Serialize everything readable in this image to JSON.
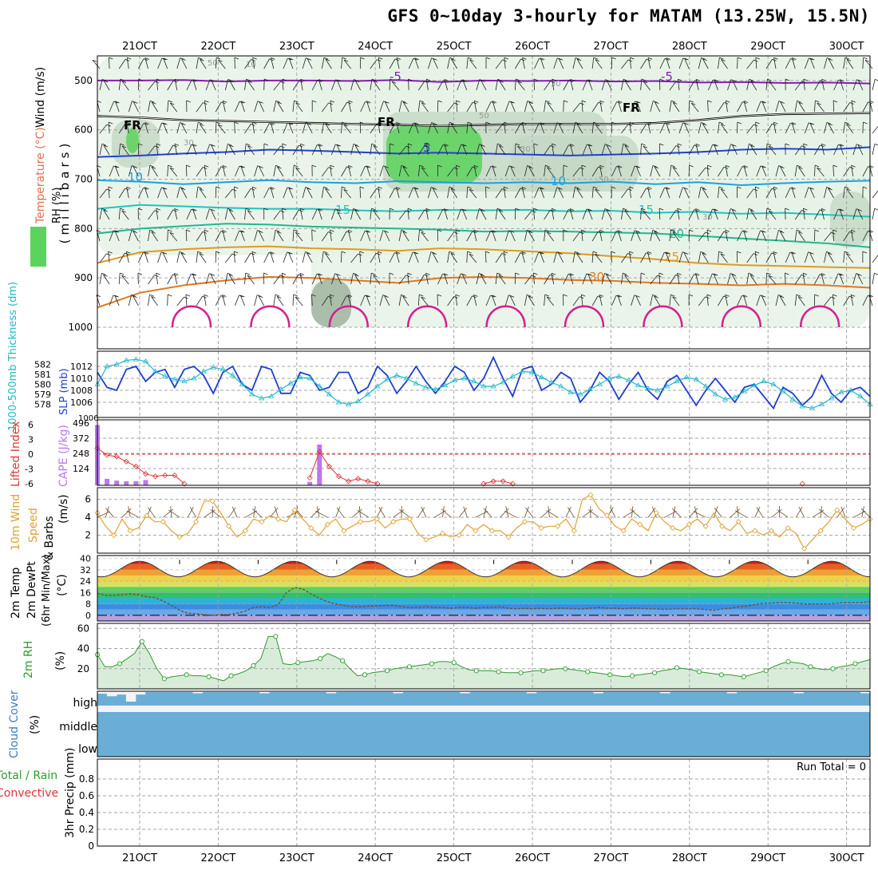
{
  "title": "GFS 0~10day 3-hourly for MATAM (13.25W, 15.5N)",
  "dates": [
    "21OCT",
    "22OCT",
    "23OCT",
    "24OCT",
    "25OCT",
    "26OCT",
    "27OCT",
    "28OCT",
    "29OCT",
    "30OCT"
  ],
  "run_total_label": "Run Total = 0",
  "chart_data": [
    {
      "type": "heatmap",
      "panel": "upper_air",
      "ylabel": "(millibars)",
      "side_labels": {
        "wind": "Wind (m/s)",
        "temperature": "Temperature (°C)",
        "rh": "RH (%)"
      },
      "y_ticks": [
        500,
        600,
        700,
        800,
        900,
        1000
      ],
      "temperature_isotherms": [
        {
          "value": -5,
          "color": "#8a1ab6",
          "p": [
            500,
            500,
            499,
            502,
            500,
            500,
            501,
            499,
            503,
            500,
            501,
            500,
            502,
            501,
            504,
            503,
            505,
            504,
            506
          ]
        },
        {
          "value": 0,
          "color": "#000000",
          "p": [
            572,
            575,
            580,
            582,
            584,
            586,
            588,
            590,
            592,
            590,
            588,
            588,
            588,
            586,
            580,
            572,
            568,
            567,
            566
          ],
          "label": "FR"
        },
        {
          "value": 5,
          "color": "#2341d0",
          "p": [
            655,
            652,
            648,
            645,
            640,
            642,
            645,
            648,
            646,
            648,
            650,
            652,
            650,
            648,
            645,
            640,
            638,
            640,
            635
          ]
        },
        {
          "value": 10,
          "color": "#1da0e0",
          "p": [
            702,
            705,
            710,
            706,
            702,
            706,
            708,
            704,
            706,
            708,
            706,
            708,
            705,
            710,
            706,
            712,
            708,
            705,
            703
          ]
        },
        {
          "value": 15,
          "color": "#1fc4c0",
          "p": [
            760,
            752,
            755,
            758,
            760,
            760,
            763,
            765,
            762,
            763,
            762,
            765,
            764,
            768,
            766,
            770,
            768,
            772,
            776
          ]
        },
        {
          "value": 20,
          "color": "#20b890",
          "p": [
            810,
            800,
            795,
            790,
            792,
            796,
            798,
            800,
            802,
            806,
            805,
            806,
            808,
            810,
            815,
            820,
            825,
            830,
            838
          ]
        },
        {
          "value": 25,
          "color": "#e09a20",
          "p": [
            870,
            848,
            842,
            838,
            836,
            840,
            842,
            845,
            840,
            842,
            846,
            850,
            856,
            862,
            870,
            874,
            876,
            878,
            880
          ]
        },
        {
          "value": 30,
          "color": "#e07820",
          "p": [
            960,
            930,
            915,
            905,
            898,
            900,
            905,
            910,
            900,
            898,
            900,
            904,
            906,
            910,
            912,
            915,
            912,
            915,
            920
          ]
        }
      ],
      "contour_labels": [
        "-5",
        "-5",
        "FR",
        "FR",
        "FR",
        "5",
        "10",
        "10",
        "15",
        "15",
        "20",
        "25",
        "30",
        "10",
        "30",
        "50",
        "30",
        "50",
        "30",
        "50",
        "30"
      ],
      "rh_shading_levels": [
        10,
        30,
        50,
        70,
        90
      ]
    },
    {
      "type": "line",
      "panel": "sea_level_pressure_and_thickness",
      "ylabel_left": "1000-500mb Thickness (dm)",
      "ylabel_right": "SLP (mb)",
      "y_ticks_thickness": [
        578,
        579,
        580,
        581,
        582
      ],
      "y_ticks_slp": [
        1006,
        1008,
        1010,
        1012
      ],
      "extra_tick_labels": [
        "1.006",
        "1006"
      ],
      "series": [
        {
          "name": "SLP (mb)",
          "color": "#1f3fd0",
          "values": [
            1011.0,
            1008.5,
            1008.0,
            1011.5,
            1012.0,
            1009.5,
            1011.0,
            1011.5,
            1008.5,
            1011.5,
            1012.0,
            1010.5,
            1007.5,
            1011.0,
            1012.0,
            1009.0,
            1008.0,
            1012.0,
            1011.5,
            1007.5,
            1007.5,
            1011.0,
            1010.5,
            1008.0,
            1008.5,
            1011.0,
            1011.0,
            1007.5,
            1008.5,
            1012.0,
            1010.5,
            1007.5,
            1009.5,
            1012.0,
            1009.5,
            1007.5,
            1009.5,
            1012.0,
            1011.0,
            1008.0,
            1010.0,
            1013.5,
            1010.0,
            1007.0,
            1011.5,
            1012.0,
            1008.0,
            1009.0,
            1011.0,
            1010.0,
            1006.0,
            1008.0,
            1011.0,
            1009.5,
            1006.5,
            1009.0,
            1011.0,
            1008.0,
            1006.5,
            1009.5,
            1010.5,
            1008.0,
            1005.5,
            1008.0,
            1010.0,
            1008.0,
            1006.0,
            1008.5,
            1009.0,
            1007.0,
            1005.0,
            1008.5,
            1007.5,
            1005.5,
            1007.0,
            1010.5,
            1007.5,
            1006.0,
            1008.0,
            1008.5,
            1007.0
          ]
        },
        {
          "name": "Thickness (dm)",
          "color": "#20b8c8",
          "values": [
            580.0,
            581.8,
            582.0,
            582.4,
            582.5,
            582.3,
            581.3,
            580.8,
            580.5,
            580.3,
            580.6,
            581.3,
            581.7,
            581.5,
            580.9,
            580.0,
            579.0,
            578.6,
            578.8,
            579.5,
            580.1,
            580.7,
            580.6,
            579.8,
            579.0,
            578.2,
            578.0,
            578.3,
            579.0,
            579.8,
            580.5,
            580.9,
            580.6,
            580.1,
            579.7,
            579.5,
            579.9,
            580.4,
            580.6,
            580.3,
            579.8,
            579.8,
            580.2,
            580.8,
            581.3,
            581.2,
            580.7,
            580.2,
            579.8,
            579.2,
            579.0,
            579.5,
            580.0,
            580.6,
            580.8,
            580.4,
            579.9,
            579.6,
            579.4,
            579.8,
            580.3,
            580.7,
            580.5,
            579.8,
            579.0,
            578.5,
            578.7,
            579.3,
            579.9,
            580.3,
            580.0,
            579.3,
            578.5,
            577.8,
            577.6,
            578.0,
            578.6,
            579.2,
            579.4,
            578.8,
            578.0
          ]
        }
      ]
    },
    {
      "type": "bar",
      "panel": "lifted_index_and_cape",
      "ylabel_left": "Lifted Index",
      "ylabel_right": "CAPE (J/kg)",
      "y_ticks_li": [
        "-6",
        "-3",
        "0",
        "3",
        "6"
      ],
      "y_ticks_cape": [
        124,
        248,
        372,
        496
      ],
      "cape_bars": [
        {
          "t": 0,
          "v": 480
        },
        {
          "t": 1,
          "v": 40
        },
        {
          "t": 2,
          "v": 25
        },
        {
          "t": 3,
          "v": 20
        },
        {
          "t": 4,
          "v": 20
        },
        {
          "t": 5,
          "v": 30
        },
        {
          "t": 22,
          "v": 15
        },
        {
          "t": 23,
          "v": 320
        }
      ],
      "lifted_index": [
        {
          "t": 0,
          "v": -1.2
        },
        {
          "t": 1,
          "v": 0.2
        },
        {
          "t": 2,
          "v": 0.5
        },
        {
          "t": 3,
          "v": 1.5
        },
        {
          "t": 4,
          "v": 2.5
        },
        {
          "t": 5,
          "v": 4.0
        },
        {
          "t": 6,
          "v": 4.5
        },
        {
          "t": 7,
          "v": 4.3
        },
        {
          "t": 8,
          "v": 4.3
        },
        {
          "t": 9,
          "v": 6.0
        },
        {
          "t": 22,
          "v": 4.8
        },
        {
          "t": 23,
          "v": -0.5
        },
        {
          "t": 24,
          "v": 2.5
        },
        {
          "t": 25,
          "v": 4.5
        },
        {
          "t": 26,
          "v": 5.5
        },
        {
          "t": 27,
          "v": 5.0
        },
        {
          "t": 28,
          "v": 5.5
        },
        {
          "t": 29,
          "v": 6.0
        },
        {
          "t": 40,
          "v": 6.0
        },
        {
          "t": 41,
          "v": 5.5
        },
        {
          "t": 42,
          "v": 5.5
        },
        {
          "t": 43,
          "v": 6.0
        },
        {
          "t": 73,
          "v": 6.0
        }
      ]
    },
    {
      "type": "line",
      "panel": "wind_10m",
      "ylabel": "10m Wind Speed & Barbs (m/s)",
      "y_ticks": [
        2,
        4,
        6
      ],
      "series": [
        {
          "name": "Speed",
          "color": "#e0a030",
          "values": [
            4.5,
            3.0,
            2.0,
            3.8,
            2.5,
            2.8,
            4.2,
            3.5,
            3.5,
            2.5,
            1.8,
            2.2,
            3.5,
            5.8,
            5.8,
            4.5,
            3.0,
            1.8,
            2.5,
            3.8,
            3.5,
            4.2,
            3.8,
            3.5,
            4.8,
            3.8,
            2.8,
            2.0,
            3.2,
            3.8,
            2.5,
            3.0,
            3.5,
            3.5,
            3.8,
            2.8,
            3.5,
            3.8,
            3.8,
            2.2,
            1.5,
            1.8,
            2.2,
            1.8,
            2.0,
            3.2,
            2.5,
            3.2,
            2.5,
            2.5,
            1.8,
            2.8,
            3.5,
            3.5,
            2.8,
            3.0,
            3.0,
            3.8,
            2.5,
            6.0,
            6.5,
            5.0,
            4.2,
            3.0,
            2.5,
            3.8,
            3.2,
            2.5,
            4.5,
            3.5,
            2.8,
            2.5,
            3.2,
            3.8,
            3.0,
            4.5,
            3.0,
            2.5,
            3.5,
            2.2,
            2.5,
            2.0,
            2.5,
            1.8,
            2.8,
            2.2,
            0.5,
            1.5,
            2.5,
            3.5,
            4.8,
            3.8,
            2.8,
            3.2,
            3.8
          ]
        }
      ]
    },
    {
      "type": "area",
      "panel": "temperature_2m",
      "ylabel": "2m Temp 2m DewPt (6hr Min/Max) (°C)",
      "y_ticks": [
        0,
        8,
        16,
        24,
        32,
        40
      ],
      "daily_max_temp": [
        38,
        38,
        38,
        38,
        38,
        38,
        38,
        38,
        38,
        38
      ],
      "daily_min_temp": [
        27,
        27,
        27,
        27,
        27,
        27,
        27,
        27,
        27,
        27
      ],
      "dewpoint": [
        15.5,
        14.0,
        14.0,
        14.5,
        15.0,
        14.5,
        13.0,
        12.5,
        10.0,
        7.0,
        3.5,
        1.5,
        1.0,
        0.5,
        0.0,
        0.5,
        0.5,
        1.5,
        3.0,
        5.5,
        6.0,
        5.5,
        7.5,
        16.0,
        19.5,
        18.5,
        15.0,
        12.0,
        9.5,
        8.0,
        7.0,
        6.0,
        6.0,
        6.5,
        6.5,
        7.0,
        7.0,
        6.0,
        5.5,
        5.5,
        6.0,
        5.5,
        5.5,
        5.0,
        5.5,
        5.5,
        5.0,
        5.5,
        5.5,
        6.0,
        5.0,
        4.5,
        5.0,
        4.5,
        5.0,
        4.5,
        5.0,
        5.0,
        4.5,
        4.5,
        5.0,
        5.5,
        5.0,
        5.0,
        4.5,
        5.0,
        5.0,
        4.5,
        4.5,
        4.0,
        4.5,
        4.5,
        4.5,
        4.5,
        4.0,
        3.5,
        4.5,
        5.0,
        6.0,
        6.5,
        7.5,
        8.5,
        8.5,
        9.0,
        9.0,
        8.5,
        8.0,
        8.0,
        8.0,
        8.0,
        8.5,
        9.0,
        9.0,
        9.0,
        9.5
      ]
    },
    {
      "type": "area",
      "panel": "relative_humidity_2m",
      "ylabel": "2m RH (%)",
      "y_ticks": [
        20,
        40,
        60
      ],
      "series": [
        {
          "name": "2m RH",
          "color": "#2f9a2f",
          "values": [
            34,
            22,
            22,
            25,
            30,
            35,
            47,
            35,
            20,
            10,
            12,
            13,
            14,
            13,
            13,
            12,
            10,
            8,
            13,
            15,
            18,
            23,
            30,
            52,
            52,
            25,
            24,
            26,
            27,
            28,
            30,
            35,
            32,
            28,
            20,
            13,
            14,
            16,
            17,
            18,
            20,
            21,
            22,
            23,
            24,
            25,
            27,
            27,
            26,
            22,
            19,
            18,
            18,
            18,
            17,
            16,
            16,
            16,
            17,
            18,
            18,
            19,
            20,
            20,
            19,
            18,
            17,
            16,
            15,
            14,
            13,
            12,
            13,
            14,
            15,
            16,
            18,
            19,
            21,
            20,
            19,
            17,
            16,
            15,
            14,
            14,
            13,
            12,
            14,
            16,
            18,
            22,
            25,
            27,
            26,
            25,
            22,
            20,
            19,
            20,
            22,
            23,
            25,
            27,
            29
          ]
        }
      ]
    },
    {
      "type": "area",
      "panel": "cloud_cover",
      "ylabel": "Cloud Cover (%)",
      "y_ticks": [
        "high",
        "middle",
        "low"
      ],
      "high_cloud_fraction": [
        0.7,
        0.4,
        0.6,
        0.5,
        0.6,
        0.9,
        0.9,
        0.9,
        0.9,
        0.9,
        0.9,
        0.9,
        0.9,
        0.9,
        0.9,
        0.9,
        0.9,
        0.9,
        0.9,
        0.9,
        0.9,
        0.9,
        0.9,
        0.9,
        0.9,
        0.9,
        0.9,
        0.9,
        0.9,
        0.9,
        0.9,
        0.9,
        0.9,
        0.9,
        0.9,
        0.9,
        0.9,
        0.9,
        0.9,
        0.9,
        0.9,
        0.9,
        0.9,
        0.9,
        0.9,
        0.9,
        0.9,
        0.9,
        0.9,
        0.9,
        0.9,
        0.9,
        0.9,
        0.9,
        0.9,
        0.9,
        0.9,
        0.9,
        0.9,
        0.9,
        0.9,
        0.9,
        0.9,
        0.9,
        0.9,
        0.9,
        0.9,
        0.9,
        0.9,
        0.9,
        0.9,
        0.9,
        0.9,
        0.9,
        0.9,
        0.9,
        0.9,
        0.9,
        0.9,
        0.9,
        0.9
      ],
      "mid_low_cloud_fraction": 1.0
    },
    {
      "type": "bar",
      "panel": "precipitation",
      "ylabel": "3hr Precip (mm)",
      "legend": [
        "Total / Rain",
        "Convective"
      ],
      "y_ticks": [
        0,
        0.2,
        0.4,
        0.6,
        0.8
      ],
      "values": []
    }
  ],
  "colors": {
    "grid": "#a6a6a6",
    "rh_light": "#e6f2e6",
    "rh_mid": "#c6d8c6",
    "rh_dark": "#9fb49f",
    "rh_green": "#5ad45a",
    "slp": "#1f3fd0",
    "thickness": "#20b8c8",
    "cape": "#bb77ee",
    "lifted_index": "#dd3333",
    "wind_speed": "#e0a030",
    "rh2m": "#2f9a2f",
    "cloud": "#6aaed6",
    "cloud_clear": "#f4f4f8"
  }
}
